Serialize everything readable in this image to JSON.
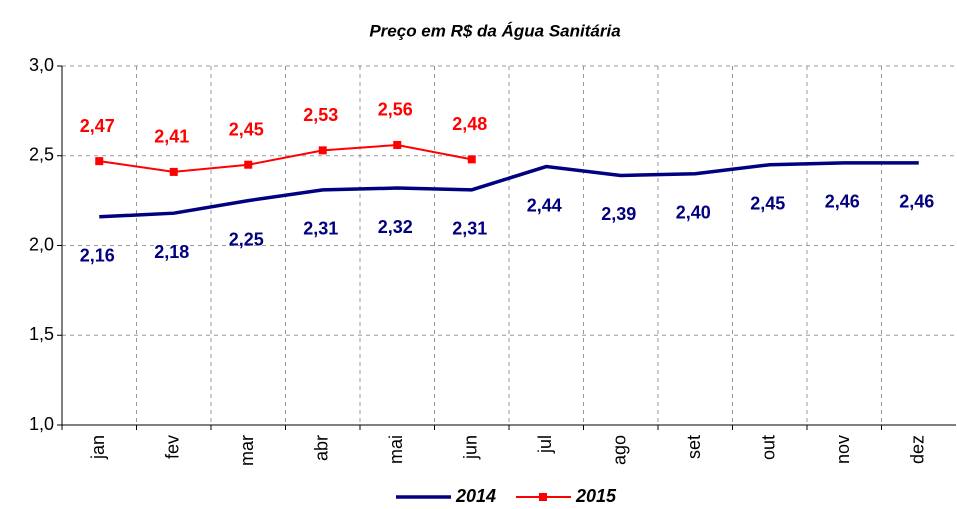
{
  "chart_data": {
    "type": "line",
    "title": "Preço em R$ da Água Sanitária",
    "categories": [
      "jan",
      "fev",
      "mar",
      "abr",
      "mai",
      "jun",
      "jul",
      "ago",
      "set",
      "out",
      "nov",
      "dez"
    ],
    "series": [
      {
        "name": "2014",
        "color": "#000080",
        "marker": "none",
        "values": [
          2.16,
          2.18,
          2.25,
          2.31,
          2.32,
          2.31,
          2.44,
          2.39,
          2.4,
          2.45,
          2.46,
          2.46
        ],
        "value_labels": [
          "2,16",
          "2,18",
          "2,25",
          "2,31",
          "2,32",
          "2,31",
          "2,44",
          "2,39",
          "2,40",
          "2,45",
          "2,46",
          "2,46"
        ]
      },
      {
        "name": "2015",
        "color": "#ff0000",
        "marker": "square",
        "values": [
          2.47,
          2.41,
          2.45,
          2.53,
          2.56,
          2.48,
          null,
          null,
          null,
          null,
          null,
          null
        ],
        "value_labels": [
          "2,47",
          "2,41",
          "2,45",
          "2,53",
          "2,56",
          "2,48",
          null,
          null,
          null,
          null,
          null,
          null
        ]
      }
    ],
    "ylim": [
      1.0,
      3.0
    ],
    "yticks": [
      {
        "value": 1.0,
        "label": "1,0"
      },
      {
        "value": 1.5,
        "label": "1,5"
      },
      {
        "value": 2.0,
        "label": "2,0"
      },
      {
        "value": 2.5,
        "label": "2,5"
      },
      {
        "value": 3.0,
        "label": "3,0"
      }
    ],
    "grid": true,
    "legend": "bottom"
  }
}
